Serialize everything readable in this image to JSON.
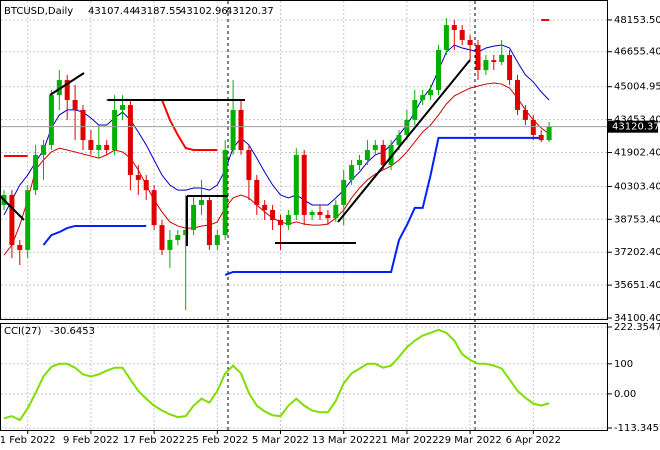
{
  "chart_data": [
    {
      "type": "candlestick",
      "title": "BTCUSD,Daily",
      "header_values": [
        43107.44,
        43187.55,
        43102.96,
        43120.37
      ],
      "categories": [
        null,
        null,
        null,
        "1 Feb 2022",
        null,
        null,
        null,
        null,
        null,
        null,
        null,
        "9 Feb 2022",
        null,
        null,
        null,
        null,
        null,
        null,
        null,
        "17 Feb 2022",
        null,
        null,
        null,
        null,
        null,
        null,
        null,
        "25 Feb 2022",
        null,
        null,
        null,
        null,
        null,
        null,
        null,
        "5 Mar 2022",
        null,
        null,
        null,
        null,
        null,
        null,
        null,
        "13 Mar 2022",
        null,
        null,
        null,
        null,
        null,
        null,
        null,
        "21 Mar 2022",
        null,
        null,
        null,
        null,
        null,
        null,
        null,
        "29 Mar 2022",
        null,
        null,
        null,
        null,
        null,
        null,
        null,
        "6 Apr 2022",
        null,
        null
      ],
      "open": [
        39430,
        39900,
        37540,
        37310,
        40130,
        41790,
        42260,
        44610,
        45320,
        44380,
        43910,
        42490,
        42020,
        42260,
        42020,
        43910,
        44140,
        40840,
        40610,
        40130,
        38480,
        37310,
        37780,
        38010,
        38250,
        39430,
        39660,
        37540,
        38010,
        42020,
        43910,
        42020,
        40610,
        39430,
        39190,
        38720,
        38480,
        38960,
        41790,
        38960,
        39100,
        38960,
        38810,
        39430,
        40610,
        41310,
        41550,
        42020,
        42260,
        41310,
        42260,
        42730,
        43440,
        44380,
        44610,
        44850,
        46740,
        47910,
        47680,
        47210,
        46970,
        45790,
        46260,
        46170,
        46500,
        45320,
        43910,
        43440,
        42730,
        42490
      ],
      "high": [
        40130,
        40130,
        37780,
        40370,
        42260,
        42490,
        44850,
        45790,
        45560,
        45090,
        44140,
        42960,
        43200,
        42490,
        44610,
        44610,
        44380,
        41310,
        40840,
        40370,
        38720,
        38250,
        38250,
        39900,
        39900,
        40610,
        39900,
        38250,
        42490,
        45320,
        44380,
        42260,
        40840,
        39660,
        39430,
        38960,
        39190,
        42110,
        42020,
        39190,
        39430,
        39190,
        39660,
        41080,
        41550,
        41790,
        42490,
        42490,
        42490,
        42490,
        42960,
        43910,
        44850,
        44850,
        45090,
        46970,
        48240,
        48150,
        47910,
        47440,
        47210,
        46500,
        46500,
        47210,
        46740,
        45560,
        44140,
        43670,
        42960,
        43340
      ],
      "low": [
        39190,
        36930,
        36600,
        36930,
        39900,
        40610,
        42020,
        43910,
        43440,
        42490,
        42020,
        41790,
        41640,
        41790,
        41790,
        43440,
        40130,
        39900,
        39660,
        38250,
        37070,
        36460,
        37540,
        34480,
        38010,
        38960,
        37310,
        37310,
        37780,
        41790,
        41790,
        39660,
        38960,
        38720,
        38250,
        37310,
        38250,
        38720,
        38480,
        38720,
        38720,
        38480,
        38630,
        38480,
        40370,
        41080,
        41310,
        41790,
        41080,
        41080,
        42020,
        42490,
        43200,
        44140,
        44380,
        44610,
        46500,
        46740,
        46970,
        46260,
        45320,
        45560,
        45790,
        46030,
        45090,
        43670,
        43200,
        42490,
        42400,
        42400
      ],
      "close": [
        39900,
        37540,
        37310,
        40130,
        41790,
        42260,
        44610,
        45320,
        44380,
        43910,
        42490,
        42020,
        42260,
        42020,
        43910,
        44140,
        40840,
        40610,
        40130,
        38480,
        37310,
        37780,
        38010,
        38250,
        39430,
        39660,
        37540,
        38010,
        42020,
        43910,
        42020,
        40610,
        39430,
        39190,
        38720,
        38480,
        38960,
        41790,
        38960,
        39100,
        38960,
        38810,
        39430,
        40610,
        41310,
        41550,
        42020,
        42260,
        41310,
        42260,
        42730,
        43440,
        44380,
        44610,
        44850,
        46740,
        47910,
        47680,
        47210,
        46970,
        45790,
        46260,
        46170,
        46500,
        45320,
        43910,
        43440,
        42730,
        42490,
        43120.37
      ],
      "up_color": "#00b000",
      "down_color": "#e00000",
      "lines": [
        {
          "color": "#0000c8",
          "values": [
            38960,
            39660,
            40370,
            40840,
            41450,
            42020,
            43060,
            43670,
            43910,
            43910,
            43810,
            43530,
            43200,
            43200,
            43530,
            43810,
            43440,
            42870,
            42260,
            41550,
            40840,
            40370,
            40130,
            40130,
            40230,
            40230,
            40130,
            40370,
            41080,
            42110,
            42590,
            42260,
            41640,
            40980,
            40370,
            39900,
            39760,
            39900,
            39660,
            39430,
            39430,
            39430,
            39760,
            40130,
            40610,
            40980,
            41450,
            41790,
            41930,
            42260,
            42730,
            43200,
            43810,
            44470,
            44940,
            45790,
            46640,
            46970,
            46830,
            46740,
            46640,
            46830,
            46920,
            46970,
            46830,
            46170,
            45560,
            45230,
            44760,
            44380
          ]
        },
        {
          "color": "#d00000",
          "values": [
            37070,
            37540,
            38480,
            39660,
            41080,
            41550,
            41930,
            42110,
            42020,
            41930,
            41830,
            41740,
            41640,
            41790,
            42020,
            41930,
            41640,
            41080,
            40370,
            39660,
            39100,
            38630,
            38440,
            38340,
            38340,
            38440,
            38480,
            38630,
            39290,
            39760,
            39900,
            39760,
            39430,
            39100,
            38810,
            38630,
            38530,
            38630,
            38530,
            38480,
            38480,
            38530,
            38810,
            39190,
            39760,
            40230,
            40610,
            40890,
            41080,
            41270,
            41550,
            41930,
            42400,
            42870,
            43200,
            43670,
            44190,
            44570,
            44760,
            44940,
            45040,
            45130,
            45180,
            45130,
            44940,
            44470,
            43910,
            43440,
            43060,
            42780
          ]
        },
        {
          "color": "#0020ff",
          "width": 2,
          "values": [
            null,
            null,
            null,
            null,
            null,
            37540,
            38010,
            38150,
            38340,
            38440,
            38440,
            38440,
            38440,
            38440,
            38440,
            38440,
            38440,
            38440,
            38440,
            null,
            null,
            null,
            null,
            null,
            null,
            null,
            null,
            null,
            36130,
            36270,
            36270,
            36270,
            36270,
            36270,
            36270,
            36270,
            36270,
            36270,
            36270,
            36270,
            36270,
            36270,
            36270,
            36270,
            36270,
            36270,
            36270,
            36270,
            36270,
            36270,
            37780,
            38480,
            39290,
            39290,
            40840,
            42590,
            42590,
            42590,
            42590,
            42590,
            42590,
            42590,
            42590,
            42590,
            42590,
            42590,
            42590,
            42590,
            42590,
            null
          ]
        },
        {
          "color": "#ff0000",
          "width": 2,
          "values": [
            41740,
            41740,
            41740,
            41740,
            null,
            null,
            null,
            null,
            null,
            null,
            null,
            null,
            null,
            44380,
            44380,
            44380,
            44380,
            44380,
            44380,
            44380,
            44380,
            43440,
            42730,
            42110,
            42020,
            42020,
            42020,
            42020,
            null,
            null,
            null,
            null,
            null,
            null,
            null,
            null,
            null,
            null,
            null,
            null,
            null,
            null,
            null,
            null,
            null,
            null,
            null,
            null,
            null,
            null,
            null,
            null,
            null,
            null,
            null,
            null,
            null,
            null,
            null,
            null,
            null,
            null,
            null,
            null,
            null,
            null,
            null,
            null,
            48150,
            48150
          ]
        }
      ],
      "ylim": [
        34100.4,
        49093
      ],
      "yticks": [
        {
          "value": 48153.5,
          "label": "48153.50"
        },
        {
          "value": 46655.4,
          "label": "46655.40"
        },
        {
          "value": 45004.95,
          "label": "45004.95"
        },
        {
          "value": 43453.4,
          "label": "43453.40"
        },
        {
          "value": 41902.4,
          "label": "41902.40"
        },
        {
          "value": 40303.4,
          "label": "40303.40"
        },
        {
          "value": 38753.4,
          "label": "38753.40"
        },
        {
          "value": 37202.4,
          "label": "37202.40"
        },
        {
          "value": 35651.4,
          "label": "35651.40"
        },
        {
          "value": 34100.4,
          "label": "34100.40"
        }
      ],
      "grid": true
    },
    {
      "type": "line",
      "title": "CCI(27)",
      "color": "#80dd00",
      "values": [
        -81,
        -74,
        -87,
        -48,
        3,
        58,
        90,
        100,
        100,
        87,
        65,
        58,
        65,
        77,
        87,
        87,
        48,
        10,
        -16,
        -39,
        -55,
        -68,
        -77,
        -74,
        -39,
        -16,
        -29,
        10,
        68,
        94,
        68,
        3,
        -39,
        -58,
        -71,
        -74,
        -39,
        -16,
        -39,
        -55,
        -61,
        -61,
        -23,
        35,
        68,
        84,
        100,
        100,
        87,
        94,
        123,
        155,
        177,
        194,
        203,
        213,
        203,
        177,
        132,
        113,
        100,
        100,
        94,
        84,
        48,
        10,
        -13,
        -32,
        -39,
        -30.6453
      ],
      "ylim": [
        -113.3457,
        222.3547
      ],
      "yticks": [
        222.3547,
        100,
        {
          "value": 0,
          "label": "0.00"
        },
        -113.3457
      ]
    }
  ]
}
